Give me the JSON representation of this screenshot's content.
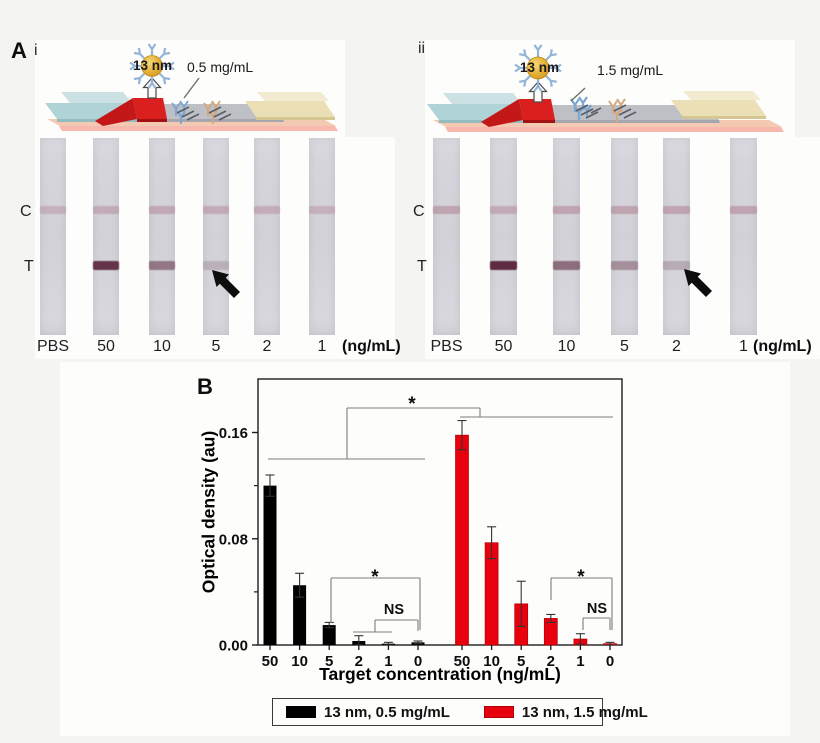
{
  "panel_a": {
    "label": "A",
    "sub_panels": [
      {
        "label": "i",
        "nanoparticle_label": "13 nm",
        "antibody_label": "0.5 mg/mL",
        "line_labels": {
          "control": "C",
          "test": "T"
        },
        "unit_label": "(ng/mL)",
        "strips": [
          {
            "label": "PBS",
            "c_intensity": 0.35,
            "t_intensity": 0,
            "arrow": false
          },
          {
            "label": "50",
            "c_intensity": 0.42,
            "t_intensity": 0.95,
            "arrow": false
          },
          {
            "label": "10",
            "c_intensity": 0.46,
            "t_intensity": 0.55,
            "arrow": false
          },
          {
            "label": "5",
            "c_intensity": 0.42,
            "t_intensity": 0.2,
            "arrow": true
          },
          {
            "label": "2",
            "c_intensity": 0.4,
            "t_intensity": 0,
            "arrow": false
          },
          {
            "label": "1",
            "c_intensity": 0.35,
            "t_intensity": 0,
            "arrow": false
          }
        ]
      },
      {
        "label": "ii",
        "nanoparticle_label": "13 nm",
        "antibody_label": "1.5 mg/mL",
        "line_labels": {
          "control": "C",
          "test": "T"
        },
        "unit_label": "(ng/mL)",
        "strips": [
          {
            "label": "PBS",
            "c_intensity": 0.5,
            "t_intensity": 0,
            "arrow": false
          },
          {
            "label": "50",
            "c_intensity": 0.42,
            "t_intensity": 1.0,
            "arrow": false
          },
          {
            "label": "10",
            "c_intensity": 0.5,
            "t_intensity": 0.6,
            "arrow": false
          },
          {
            "label": "5",
            "c_intensity": 0.5,
            "t_intensity": 0.4,
            "arrow": false
          },
          {
            "label": "2",
            "c_intensity": 0.5,
            "t_intensity": 0.24,
            "arrow": true
          },
          {
            "label": "1",
            "c_intensity": 0.5,
            "t_intensity": 0,
            "arrow": false
          }
        ]
      }
    ]
  },
  "panel_b": {
    "label": "B"
  },
  "chart_data": {
    "type": "bar",
    "title": "",
    "xlabel": "Target concentration (ng/mL)",
    "ylabel": "Optical density (au)",
    "categories": [
      "50",
      "10",
      "5",
      "2",
      "1",
      "0"
    ],
    "series": [
      {
        "name": "13 nm, 0.5 mg/mL",
        "color": "#000000",
        "values": [
          0.12,
          0.045,
          0.015,
          0.003,
          0.001,
          0.002
        ],
        "errors": [
          0.008,
          0.009,
          0.002,
          0.004,
          0.001,
          0.001
        ]
      },
      {
        "name": "13 nm, 1.5 mg/mL",
        "color": "#e8000f",
        "values": [
          0.158,
          0.077,
          0.031,
          0.02,
          0.0045,
          0.001
        ],
        "errors": [
          0.011,
          0.012,
          0.017,
          0.003,
          0.004,
          0.001
        ]
      }
    ],
    "ylim": [
      0,
      0.2
    ],
    "yticks": [
      0,
      0.08,
      0.16
    ],
    "ytick_labels": [
      "0.00",
      "0.08",
      "0.16"
    ],
    "minor_yticks": [
      0.04,
      0.12
    ],
    "grid": false,
    "legend_position": "bottom",
    "annotations": [
      {
        "label": "*",
        "compares": "0.5 mg/mL group vs 1.5 mg/mL group"
      },
      {
        "label": "*",
        "compares": "5 vs 0 ng/mL (0.5 mg/mL)"
      },
      {
        "label": "NS",
        "compares": "2,1 vs 0 ng/mL (0.5 mg/mL)"
      },
      {
        "label": "*",
        "compares": "2 vs 0 ng/mL (1.5 mg/mL)"
      },
      {
        "label": "NS",
        "compares": "1 vs 0 ng/mL (1.5 mg/mL)"
      }
    ]
  },
  "legend": {
    "items": [
      {
        "label": "13 nm, 0.5 mg/mL",
        "color": "#000000"
      },
      {
        "label": "13 nm, 1.5 mg/mL",
        "color": "#e8000f"
      }
    ]
  }
}
